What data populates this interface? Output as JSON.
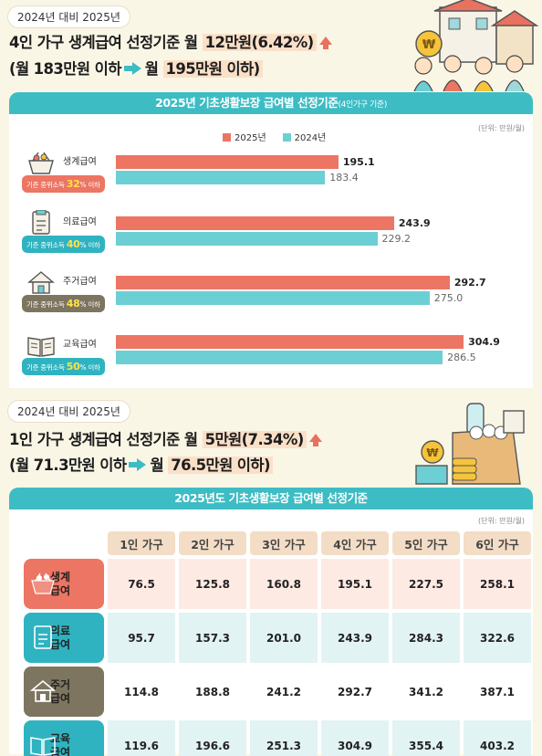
{
  "section1": {
    "pill": "2024년 대비 2025년",
    "line1_pre": "4인 가구 생계급여 선정기준 월 ",
    "line1_hl": "12만원(6.42%)",
    "line2_pre": "(월 183만원 이하",
    "line2_mid": "월 ",
    "line2_hl": "195만원 이하)"
  },
  "chart1": {
    "title": "2025년 기초생활보장 급여별 선정기준",
    "title_small": "(4인가구 기준)",
    "unit": "(단위: 만원/월)",
    "badge_prefix": "기준 중위소득",
    "badge_suffix": "% 이하"
  },
  "section2": {
    "pill": "2024년 대비 2025년",
    "line1_pre": "1인 가구 생계급여 선정기준 월 ",
    "line1_hl": "5만원(7.34%)",
    "line2_pre": "(월 71.3만원 이하",
    "line2_mid": "월 ",
    "line2_hl": "76.5만원 이하)"
  },
  "table": {
    "title": "2025년도 기초생활보장 급여별 선정기준",
    "unit": "(단위: 만원/월)",
    "columns": [
      "1인 가구",
      "2인 가구",
      "3인 가구",
      "4인 가구",
      "5인 가구",
      "6인 가구"
    ],
    "rows": [
      {
        "label1": "생계",
        "label2": "급여",
        "values": [
          "76.5",
          "125.8",
          "160.8",
          "195.1",
          "227.5",
          "258.1"
        ]
      },
      {
        "label1": "의료",
        "label2": "급여",
        "values": [
          "95.7",
          "157.3",
          "201.0",
          "243.9",
          "284.3",
          "322.6"
        ]
      },
      {
        "label1": "주거",
        "label2": "급여",
        "values": [
          "114.8",
          "188.8",
          "241.2",
          "292.7",
          "341.2",
          "387.1"
        ]
      },
      {
        "label1": "교육",
        "label2": "급여",
        "values": [
          "119.6",
          "196.6",
          "251.3",
          "304.9",
          "355.4",
          "403.2"
        ]
      }
    ]
  },
  "colors": {
    "bar2025": "#ec7563",
    "bar2024": "#6ccfd4",
    "teal": "#3dbcc4",
    "livelihood": "#ec7563",
    "medical": "#2fb3c0",
    "housing": "#7e7560",
    "education": "#2fb3c0"
  },
  "chart_data": {
    "type": "bar",
    "orientation": "horizontal",
    "categories": [
      "생계급여",
      "의료급여",
      "주거급여",
      "교육급여"
    ],
    "median_income_pct": [
      "32",
      "40",
      "48",
      "50"
    ],
    "series": [
      {
        "name": "2025년",
        "values": [
          195.1,
          243.9,
          292.7,
          304.9
        ]
      },
      {
        "name": "2024년",
        "values": [
          183.4,
          229.2,
          275.0,
          286.5
        ]
      }
    ],
    "value_labels_2025": [
      "195.1",
      "243.9",
      "292.7",
      "304.9"
    ],
    "value_labels_2024": [
      "183.4",
      "229.2",
      "275.0",
      "286.5"
    ],
    "xlim": [
      0,
      320
    ],
    "legend": "top-center",
    "grid": false
  }
}
